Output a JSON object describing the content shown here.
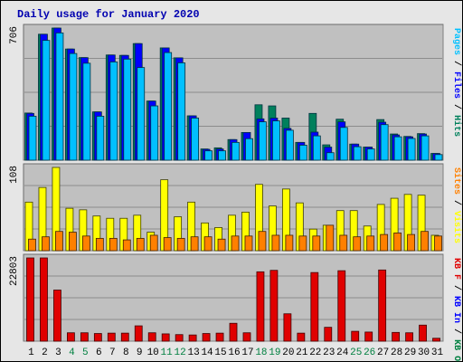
{
  "title": "Daily usage for January 2020",
  "colors": {
    "hits": "#00805c",
    "files": "#0000ff",
    "pages": "#00c0ff",
    "visits": "#ffff00",
    "sites": "#ff8000",
    "kbin": "#ff0000",
    "kbout": "#008040",
    "kbf": "#e00000",
    "weekend_label": "#008040",
    "weekday_label": "#000000"
  },
  "chart_data": [
    {
      "type": "bar",
      "panel": "top",
      "ymax_label": "706",
      "ylim": [
        0,
        706
      ],
      "right_labels": [
        {
          "text": "Pages",
          "color": "#00c0ff"
        },
        {
          "text": " / ",
          "color": "#000000"
        },
        {
          "text": "Files",
          "color": "#0000ff"
        },
        {
          "text": " / ",
          "color": "#000000"
        },
        {
          "text": "Hits",
          "color": "#00805c"
        }
      ],
      "categories": [
        "1",
        "2",
        "3",
        "4",
        "5",
        "6",
        "7",
        "8",
        "9",
        "10",
        "11",
        "12",
        "13",
        "14",
        "15",
        "16",
        "17",
        "18",
        "19",
        "20",
        "21",
        "22",
        "23",
        "24",
        "25",
        "26",
        "27",
        "28",
        "29",
        "30",
        "31"
      ],
      "weekend_days": [
        "4",
        "5",
        "11",
        "12",
        "18",
        "19",
        "25",
        "26"
      ],
      "series": [
        {
          "name": "Hits",
          "values": [
            252,
            673,
            706,
            594,
            548,
            258,
            562,
            560,
            623,
            316,
            600,
            547,
            237,
            60,
            66,
            110,
            148,
            296,
            290,
            225,
            95,
            250,
            82,
            219,
            86,
            70,
            217,
            140,
            127,
            142,
            36
          ]
        },
        {
          "name": "Files",
          "values": [
            250,
            673,
            706,
            594,
            548,
            258,
            562,
            560,
            623,
            316,
            600,
            547,
            237,
            58,
            60,
            110,
            148,
            221,
            225,
            170,
            95,
            150,
            70,
            205,
            86,
            70,
            203,
            135,
            125,
            140,
            36
          ]
        },
        {
          "name": "Pages",
          "values": [
            235,
            640,
            680,
            570,
            518,
            235,
            525,
            540,
            495,
            290,
            575,
            520,
            225,
            50,
            50,
            95,
            115,
            205,
            210,
            160,
            80,
            130,
            40,
            175,
            72,
            60,
            190,
            125,
            116,
            130,
            30
          ]
        }
      ]
    },
    {
      "type": "bar",
      "panel": "middle",
      "ymax_label": "108",
      "ylim": [
        0,
        108
      ],
      "right_labels": [
        {
          "text": "Sites",
          "color": "#ff8000"
        },
        {
          "text": " / ",
          "color": "#000000"
        },
        {
          "text": "Visits",
          "color": "#ffff00"
        }
      ],
      "categories": [
        "1",
        "2",
        "3",
        "4",
        "5",
        "6",
        "7",
        "8",
        "9",
        "10",
        "11",
        "12",
        "13",
        "14",
        "15",
        "16",
        "17",
        "18",
        "19",
        "20",
        "21",
        "22",
        "23",
        "24",
        "25",
        "26",
        "27",
        "28",
        "29",
        "30",
        "31"
      ],
      "series": [
        {
          "name": "Visits",
          "values": [
            63,
            82,
            108,
            55,
            53,
            45,
            42,
            42,
            46,
            24,
            92,
            44,
            63,
            36,
            30,
            46,
            50,
            86,
            58,
            80,
            62,
            28,
            33,
            52,
            52,
            32,
            60,
            68,
            73,
            72,
            20
          ]
        },
        {
          "name": "Sites",
          "values": [
            15,
            18,
            25,
            24,
            19,
            16,
            16,
            14,
            16,
            20,
            17,
            16,
            18,
            18,
            15,
            19,
            19,
            25,
            20,
            20,
            19,
            19,
            33,
            20,
            18,
            19,
            21,
            23,
            21,
            25,
            19
          ]
        }
      ]
    },
    {
      "type": "bar",
      "panel": "bottom",
      "ymax_label": "22803",
      "ylim": [
        0,
        22803
      ],
      "right_labels": [
        {
          "text": "KB F",
          "color": "#e00000"
        },
        {
          "text": " / ",
          "color": "#000000"
        },
        {
          "text": "KB In",
          "color": "#0000ff"
        },
        {
          "text": " / ",
          "color": "#000000"
        },
        {
          "text": "KB Out",
          "color": "#008040"
        }
      ],
      "categories": [
        "1",
        "2",
        "3",
        "4",
        "5",
        "6",
        "7",
        "8",
        "9",
        "10",
        "11",
        "12",
        "13",
        "14",
        "15",
        "16",
        "17",
        "18",
        "19",
        "20",
        "21",
        "22",
        "23",
        "24",
        "25",
        "26",
        "27",
        "28",
        "29",
        "30",
        "31"
      ],
      "series": [
        {
          "name": "KB F",
          "values": [
            22803,
            22803,
            14000,
            2300,
            2300,
            2100,
            2200,
            2200,
            4200,
            2300,
            2000,
            1800,
            1700,
            2100,
            2200,
            4900,
            2300,
            19000,
            19400,
            7500,
            2200,
            18800,
            3800,
            19300,
            2700,
            2500,
            19500,
            2400,
            2300,
            4400,
            800
          ]
        }
      ]
    }
  ]
}
